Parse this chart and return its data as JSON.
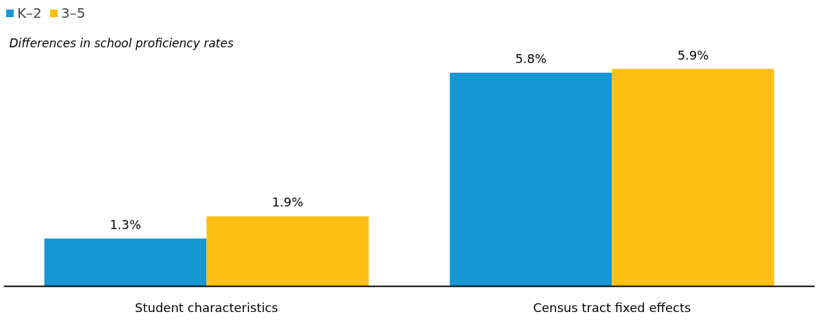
{
  "chart_data": {
    "type": "bar",
    "subtitle": "Differences in school proficiency rates",
    "categories": [
      "Student characteristics",
      "Census tract fixed effects"
    ],
    "series": [
      {
        "name": "K–2",
        "color": "#1696d2",
        "values": [
          1.3,
          5.8
        ],
        "value_labels": [
          "1.3%",
          "5.8%"
        ]
      },
      {
        "name": "3–5",
        "color": "#fdbf11",
        "values": [
          1.9,
          5.9
        ],
        "value_labels": [
          "1.9%",
          "5.9%"
        ]
      }
    ],
    "legend": "top left",
    "grid": false
  }
}
